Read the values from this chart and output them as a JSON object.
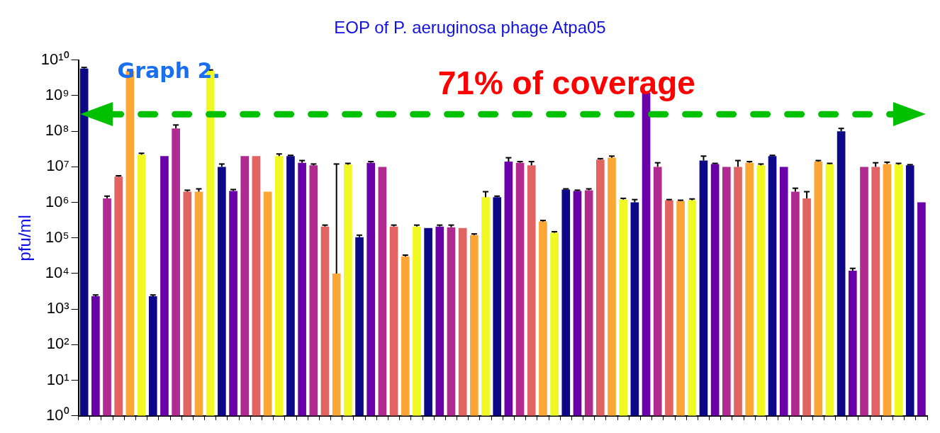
{
  "chart_data": {
    "type": "bar",
    "title": "EOP of P. aeruginosa phage Atpa05",
    "ylabel": "pfu/ml",
    "log": "y",
    "categories": [
      null,
      null,
      null,
      null,
      null,
      null,
      null,
      null,
      null,
      null,
      null,
      null,
      null,
      null,
      null,
      null,
      null,
      null,
      null,
      null,
      null,
      null,
      null,
      null,
      null,
      null,
      null,
      null,
      null,
      null,
      null,
      null,
      null,
      null,
      null,
      null,
      null,
      null,
      null,
      null,
      null,
      null,
      null,
      null,
      null,
      null,
      null,
      null,
      null,
      null,
      null,
      null,
      null,
      null,
      null,
      null,
      null,
      null,
      null,
      null,
      null,
      null,
      null,
      null,
      null,
      null,
      null,
      null,
      null,
      null,
      null,
      null,
      null,
      null
    ],
    "values": [
      5800000000.0,
      2300,
      1300000.0,
      5300000.0,
      5000000000.0,
      22000000.0,
      2300,
      20000000.0,
      120000000.0,
      2000000.0,
      2000000.0,
      5000000000.0,
      10000000.0,
      2100000.0,
      20000000.0,
      20000000.0,
      2000000.0,
      20000000.0,
      20000000.0,
      13000000.0,
      11000000.0,
      210000.0,
      10000.0,
      11500000.0,
      105000.0,
      13000000.0,
      10000000.0,
      210000.0,
      30000.0,
      210000.0,
      190000.0,
      210000.0,
      200000.0,
      190000.0,
      120000.0,
      1400000.0,
      1400000.0,
      14000000.0,
      13000000.0,
      11000000.0,
      290000.0,
      140000.0,
      2300000.0,
      2100000.0,
      2200000.0,
      16000000.0,
      18000000.0,
      1200000.0,
      1000000.0,
      1200000000.0,
      10000000.0,
      1150000.0,
      1100000.0,
      1150000.0,
      15000000.0,
      12000000.0,
      10000000.0,
      10000000.0,
      13000000.0,
      11000000.0,
      20000000.0,
      10000000.0,
      2000000.0,
      1300000.0,
      14000000.0,
      12000000.0,
      100000000.0,
      12000.0,
      10000000.0,
      10000000.0,
      12000000.0,
      11500000.0,
      11000000.0,
      1000000.0
    ],
    "errors": [
      [
        5800000000.0,
        6200000000.0
      ],
      [
        2300,
        2500
      ],
      [
        1300000.0,
        1500000.0
      ],
      [
        5300000.0,
        5600000.0
      ],
      [
        5000000000.0,
        5300000000.0
      ],
      [
        22000000.0,
        24000000.0
      ],
      [
        2300,
        2500
      ],
      null,
      [
        120000000.0,
        150000000.0
      ],
      [
        2000000.0,
        2200000.0
      ],
      [
        2000000.0,
        2400000.0
      ],
      [
        5000000000.0,
        5300000000.0
      ],
      [
        10000000.0,
        12000000.0
      ],
      [
        2100000.0,
        2300000.0
      ],
      null,
      null,
      null,
      [
        20000000.0,
        23000000.0
      ],
      [
        20000000.0,
        21000000.0
      ],
      [
        13000000.0,
        15000000.0
      ],
      [
        11000000.0,
        12000000.0
      ],
      [
        210000.0,
        230000.0
      ],
      [
        10000.0,
        12000000.0
      ],
      [
        11500000.0,
        12500000.0
      ],
      [
        105000.0,
        120000.0
      ],
      [
        13000000.0,
        14000000.0
      ],
      null,
      [
        210000.0,
        230000.0
      ],
      [
        30000.0,
        33000.0
      ],
      [
        210000.0,
        230000.0
      ],
      null,
      [
        210000.0,
        230000.0
      ],
      [
        200000.0,
        230000.0
      ],
      null,
      [
        120000.0,
        130000.0
      ],
      [
        1400000.0,
        2000000.0
      ],
      [
        1400000.0,
        1500000.0
      ],
      [
        14000000.0,
        18000000.0
      ],
      [
        13000000.0,
        14000000.0
      ],
      [
        11000000.0,
        14000000.0
      ],
      [
        290000.0,
        310000.0
      ],
      [
        140000.0,
        150000.0
      ],
      [
        2300000.0,
        2400000.0
      ],
      [
        2100000.0,
        2200000.0
      ],
      [
        2200000.0,
        2400000.0
      ],
      [
        16000000.0,
        17000000.0
      ],
      [
        18000000.0,
        20000000.0
      ],
      [
        1200000.0,
        1300000.0
      ],
      [
        1000000.0,
        1200000.0
      ],
      null,
      [
        10000000.0,
        13000000.0
      ],
      [
        1150000.0,
        1200000.0
      ],
      [
        1100000.0,
        1150000.0
      ],
      [
        1150000.0,
        1250000.0
      ],
      [
        15000000.0,
        20000000.0
      ],
      [
        12000000.0,
        12500000.0
      ],
      null,
      [
        10000000.0,
        15000000.0
      ],
      [
        13000000.0,
        14000000.0
      ],
      [
        11000000.0,
        12000000.0
      ],
      [
        20000000.0,
        21000000.0
      ],
      null,
      [
        2000000.0,
        2500000.0
      ],
      [
        1300000.0,
        2000000.0
      ],
      [
        14000000.0,
        15000000.0
      ],
      [
        12000000.0,
        12500000.0
      ],
      [
        100000000.0,
        120000000.0
      ],
      [
        12000.0,
        14000.0
      ],
      null,
      [
        10000000.0,
        13000000.0
      ],
      [
        12000000.0,
        13500000.0
      ],
      [
        11500000.0,
        12500000.0
      ],
      [
        11000000.0,
        11500000.0
      ],
      null
    ],
    "colors": [
      "#0d0887",
      "#6a00a8",
      "#b12a90",
      "#e16462",
      "#fca636",
      "#f0f921",
      "#0d0887",
      "#6a00a8",
      "#b12a90",
      "#e16462",
      "#fca636",
      "#f0f921",
      "#0d0887",
      "#6a00a8",
      "#b12a90",
      "#e16462",
      "#fca636",
      "#f0f921",
      "#0d0887",
      "#6a00a8",
      "#b12a90",
      "#e16462",
      "#fca636",
      "#f0f921",
      "#0d0887",
      "#6a00a8",
      "#b12a90",
      "#e16462",
      "#fca636",
      "#f0f921",
      "#0d0887",
      "#6a00a8",
      "#b12a90",
      "#e16462",
      "#fca636",
      "#f0f921",
      "#0d0887",
      "#6a00a8",
      "#b12a90",
      "#e16462",
      "#fca636",
      "#f0f921",
      "#0d0887",
      "#6a00a8",
      "#b12a90",
      "#e16462",
      "#fca636",
      "#f0f921",
      "#0d0887",
      "#6a00a8",
      "#b12a90",
      "#e16462",
      "#fca636",
      "#f0f921",
      "#0d0887",
      "#6a00a8",
      "#b12a90",
      "#e16462",
      "#fca636",
      "#f0f921",
      "#0d0887",
      "#6a00a8",
      "#b12a90",
      "#e16462",
      "#fca636",
      "#f0f921",
      "#0d0887",
      "#6a00a8",
      "#b12a90",
      "#e16462",
      "#fca636",
      "#f0f921",
      "#0d0887",
      "#6a00a8"
    ],
    "ylim": [
      1,
      10000000000.0
    ],
    "yticks": [
      {
        "value": 1,
        "label": "10⁰"
      },
      {
        "value": 10,
        "label": "10¹"
      },
      {
        "value": 100,
        "label": "10²"
      },
      {
        "value": 1000,
        "label": "10³"
      },
      {
        "value": 10000,
        "label": "10⁴"
      },
      {
        "value": 100000,
        "label": "10⁵"
      },
      {
        "value": 1000000,
        "label": "10⁶"
      },
      {
        "value": 10000000,
        "label": "10⁷"
      },
      {
        "value": 100000000,
        "label": "10⁸"
      },
      {
        "value": 1000000000,
        "label": "10⁹"
      },
      {
        "value": 10000000000,
        "label": "10¹⁰"
      }
    ],
    "ref_lines": [
      {
        "axis": "y",
        "value": 300000000.0,
        "label": "71% of coverage",
        "color": "#00c000",
        "line_style": "dashed"
      }
    ],
    "annotations": [
      "Graph 2."
    ]
  }
}
